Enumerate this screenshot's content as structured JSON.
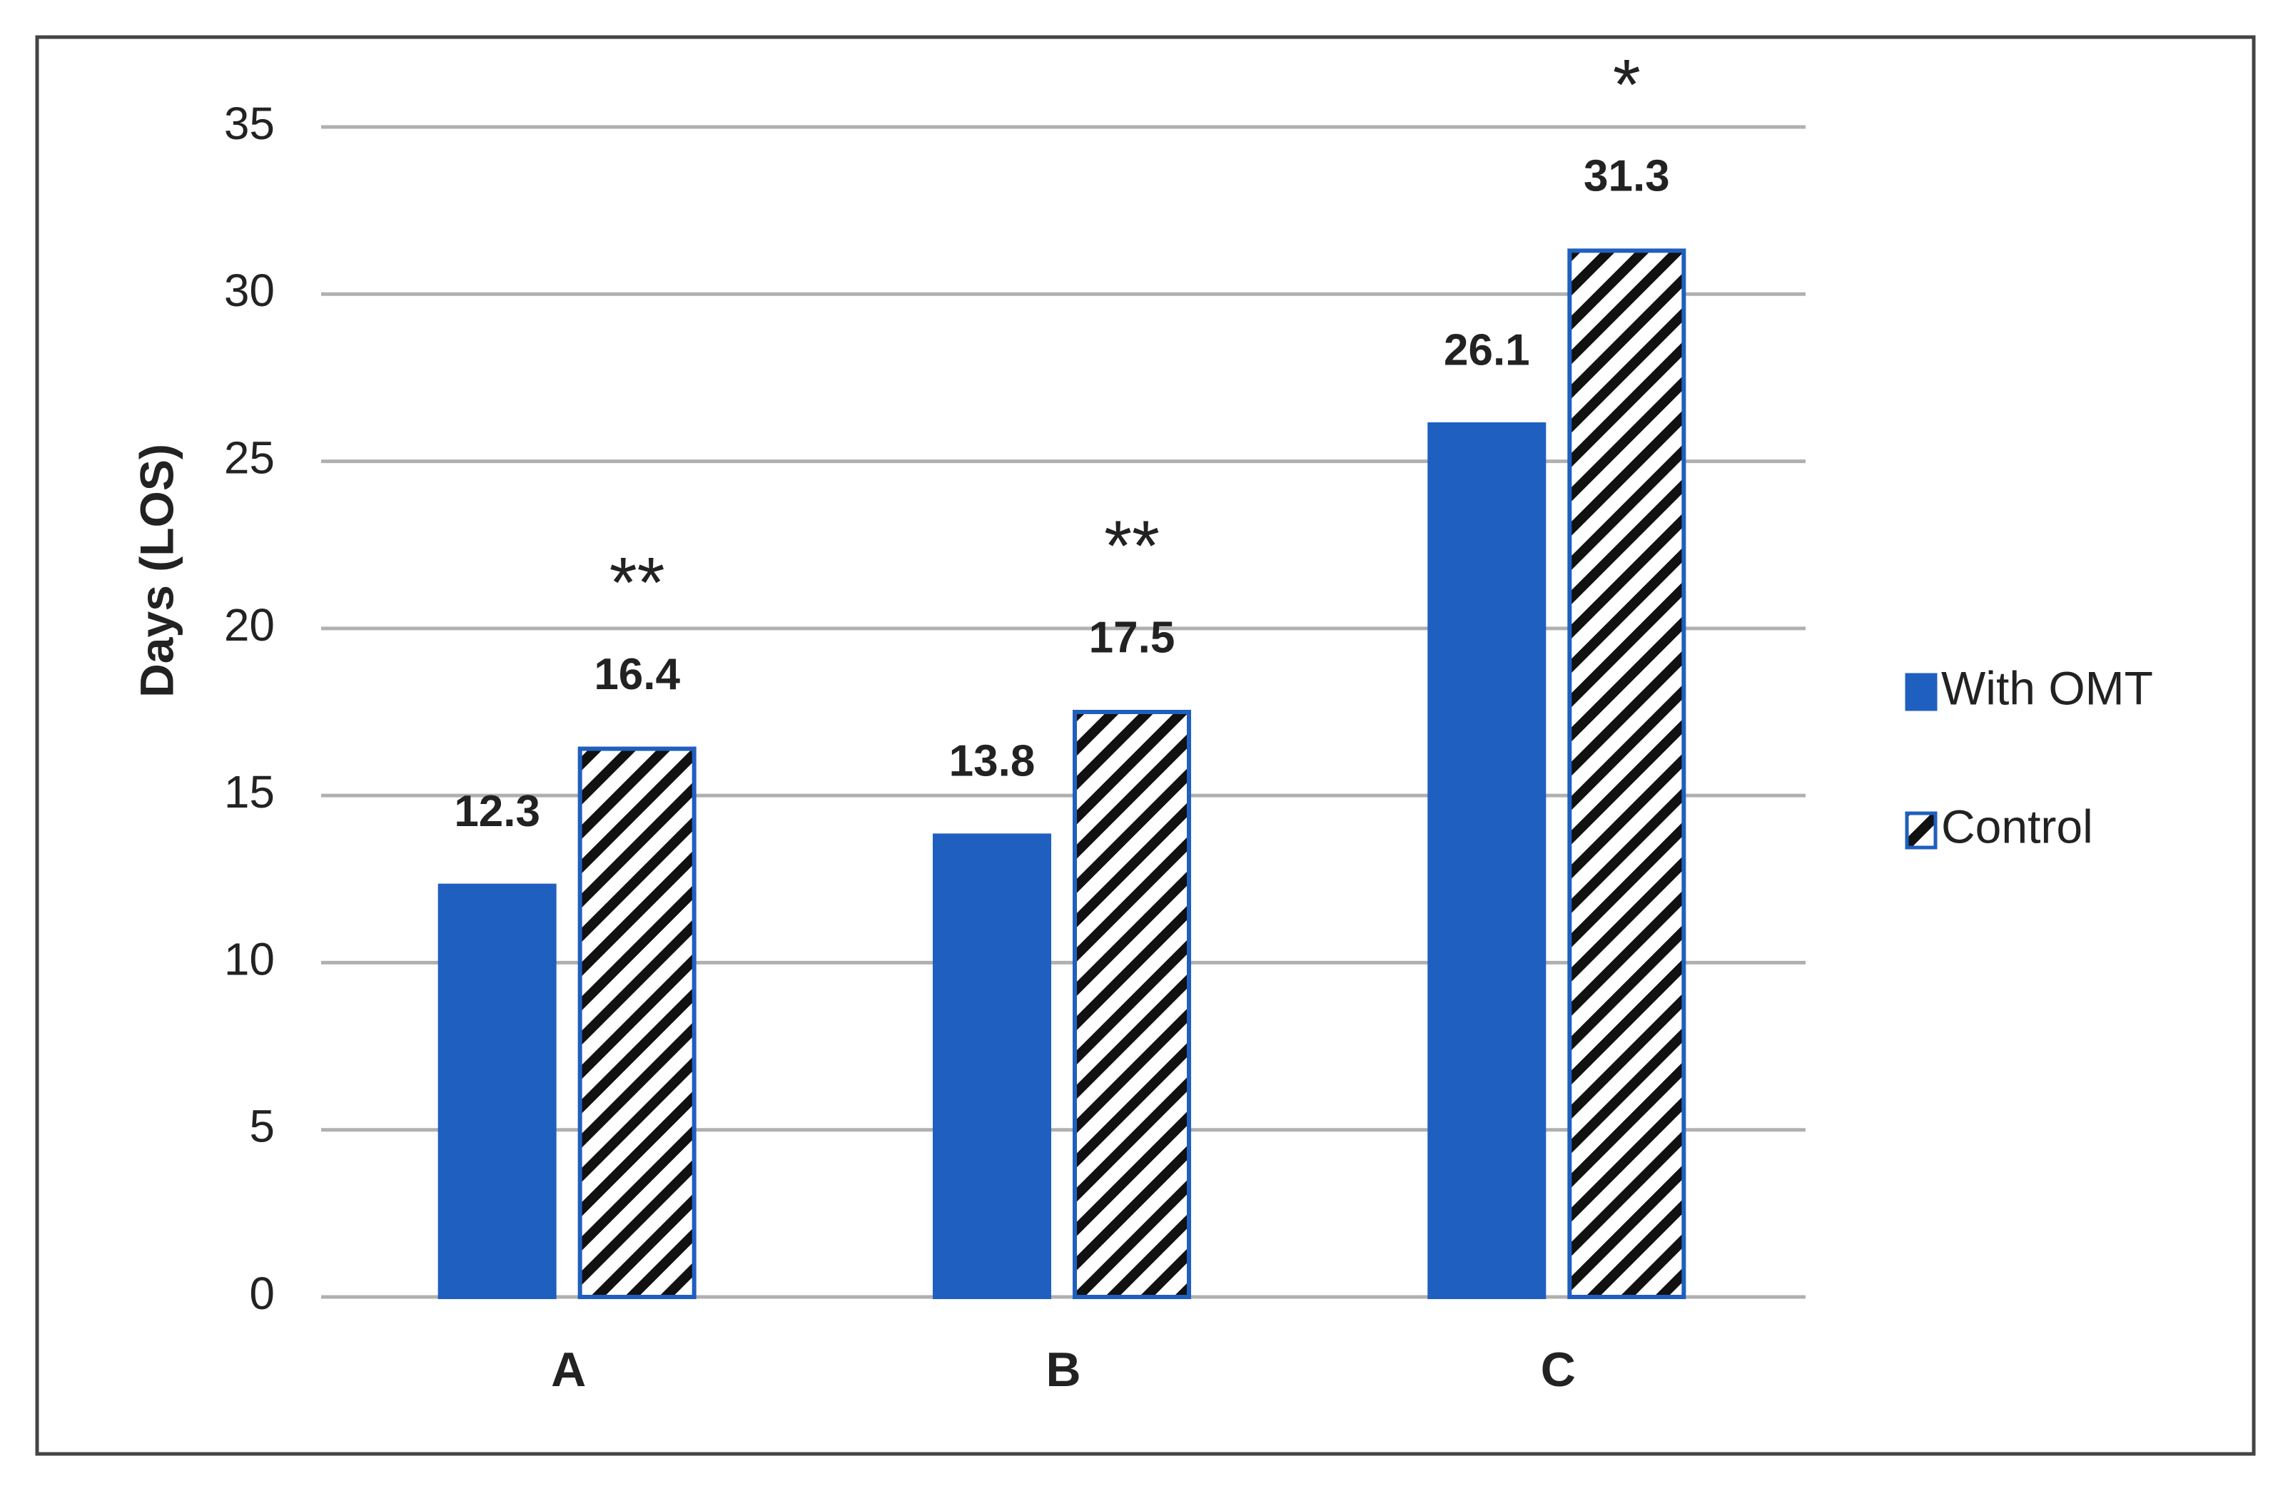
{
  "chart_data": {
    "type": "bar",
    "y_label": "Days (LOS)",
    "categories": [
      "A",
      "B",
      "C"
    ],
    "series": [
      {
        "name": "With OMT",
        "color": "#1f5fbf",
        "pattern": "solid",
        "values": [
          12.3,
          13.8,
          26.1
        ]
      },
      {
        "name": "Control",
        "color": "#1f5fbf",
        "pattern": "hatch",
        "values": [
          16.4,
          17.5,
          31.3
        ]
      }
    ],
    "significance": [
      "**",
      "**",
      "*"
    ],
    "ylim": [
      0,
      35
    ],
    "yticks": [
      0,
      5,
      10,
      15,
      20,
      25,
      30,
      35
    ],
    "grid": true,
    "legend": "right"
  }
}
